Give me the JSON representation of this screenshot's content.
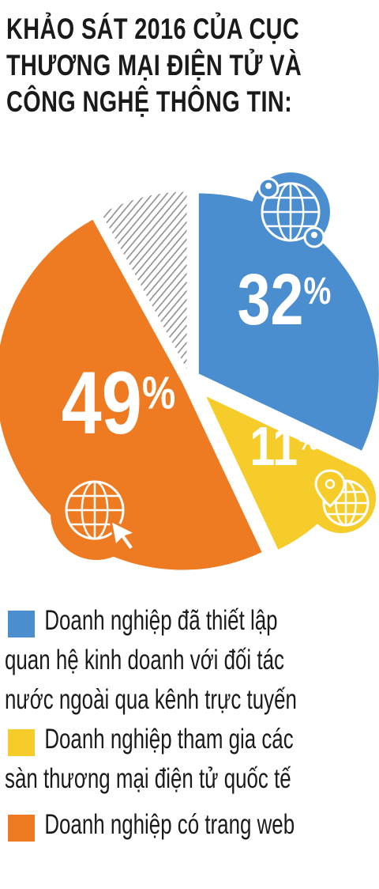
{
  "title": {
    "line1": "KHẢO SÁT 2016 CỦA CỤC",
    "line2": "THƯƠNG MẠI ĐIỆN TỬ VÀ",
    "line3": "CÔNG NGHỆ THÔNG TIN:"
  },
  "chart_data": {
    "type": "pie",
    "slices": [
      {
        "label": "Doanh nghiệp đã thiết lập quan hệ kinh doanh với đối tác nước ngoài qua kênh trực tuyến",
        "value": 32,
        "display": "32",
        "color": "#4a8ed0"
      },
      {
        "label": "Doanh nghiệp tham gia các sàn thương mại điện tử quốc tế",
        "value": 11,
        "display": "11",
        "color": "#f5cc2a"
      },
      {
        "label": "Doanh nghiệp có trang web",
        "value": 49,
        "display": "49",
        "color": "#ee7a22"
      },
      {
        "label": "",
        "value": 8,
        "display": "",
        "color": "#9a9a9a"
      }
    ],
    "percent_sign": "%"
  },
  "legend": {
    "items": [
      {
        "color": "#4a8ed0",
        "lines": [
          "Doanh nghiệp đã thiết lập",
          "quan hệ kinh doanh với đối tác",
          "nước ngoài qua kênh trực tuyến"
        ]
      },
      {
        "color": "#f5cc2a",
        "lines": [
          "Doanh nghiệp tham gia các",
          "sàn thương mại điện tử quốc tế"
        ]
      },
      {
        "color": "#ee7a22",
        "lines": [
          "Doanh nghiệp có trang web"
        ]
      }
    ]
  },
  "icons": [
    "network-globe-icon",
    "location-globe-icon",
    "web-cursor-icon"
  ]
}
